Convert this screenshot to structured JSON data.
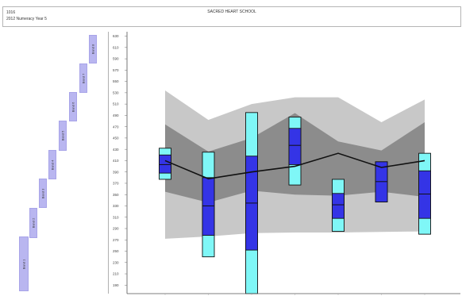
{
  "header": {
    "school_code": "1016",
    "test_line": "2012 Numeracy Year 5",
    "school_name": "SACRED HEART SCHOOL"
  },
  "bands": [
    {
      "label": "Band 1"
    },
    {
      "label": "Band 2"
    },
    {
      "label": "Band 3"
    },
    {
      "label": "Band 4"
    },
    {
      "label": "Band 5"
    },
    {
      "label": "Band 6"
    },
    {
      "label": "Band 7"
    },
    {
      "label": "Band 8"
    }
  ],
  "chart_data": {
    "type": "box",
    "ylim": [
      175,
      635
    ],
    "y_ticks": [
      190,
      210,
      230,
      250,
      270,
      290,
      310,
      330,
      350,
      370,
      390,
      410,
      430,
      450,
      470,
      490,
      510,
      530,
      550,
      570,
      590,
      610,
      630
    ],
    "x_categories": [
      "",
      "",
      "",
      "",
      "",
      "",
      ""
    ],
    "colors": {
      "outer_band": "#c8c8c8",
      "inner_band": "#8c8c8c",
      "box_outer": "#7ff7f7",
      "box_inner": "#3434e6",
      "box_stroke": "#111111",
      "mean_line": "#111111"
    },
    "shaded_band": {
      "x": [
        0,
        1,
        2,
        3,
        4,
        5,
        6
      ],
      "outer_low": [
        272,
        276,
        282,
        283,
        283,
        284,
        285
      ],
      "outer_high": [
        534,
        482,
        510,
        522,
        522,
        478,
        518
      ],
      "inner_low": [
        355,
        336,
        357,
        350,
        348,
        355,
        346
      ],
      "inner_high": [
        474,
        426,
        450,
        494,
        444,
        428,
        478
      ]
    },
    "mean_line": {
      "x": [
        0,
        1,
        2,
        3,
        4,
        5,
        6
      ],
      "y": [
        410,
        378,
        390,
        400,
        423,
        398,
        410
      ]
    },
    "boxes": [
      {
        "category": 0,
        "p05": 377,
        "p25": 388,
        "median": 403,
        "p75": 420,
        "p95": 432
      },
      {
        "category": 1,
        "p05": 240,
        "p25": 278,
        "median": 330,
        "p75": 380,
        "p95": 425
      },
      {
        "category": 2,
        "p05": 175,
        "p25": 252,
        "median": 335,
        "p75": 418,
        "p95": 495
      },
      {
        "category": 3,
        "p05": 367,
        "p25": 403,
        "median": 437,
        "p75": 467,
        "p95": 487
      },
      {
        "category": 4,
        "p05": 285,
        "p25": 308,
        "median": 332,
        "p75": 352,
        "p95": 377
      },
      {
        "category": 5,
        "p05": 337,
        "p25": 337,
        "median": 373,
        "p75": 408,
        "p95": 408
      },
      {
        "category": 6,
        "p05": 280,
        "p25": 308,
        "median": 351,
        "p75": 392,
        "p95": 423
      }
    ]
  }
}
